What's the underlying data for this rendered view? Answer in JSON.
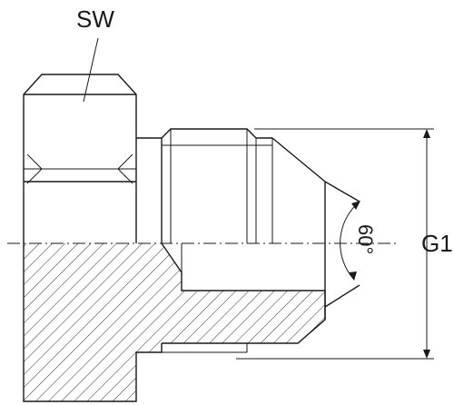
{
  "labels": {
    "across_flats": "SW",
    "thread": "G1",
    "angle": "60°"
  }
}
